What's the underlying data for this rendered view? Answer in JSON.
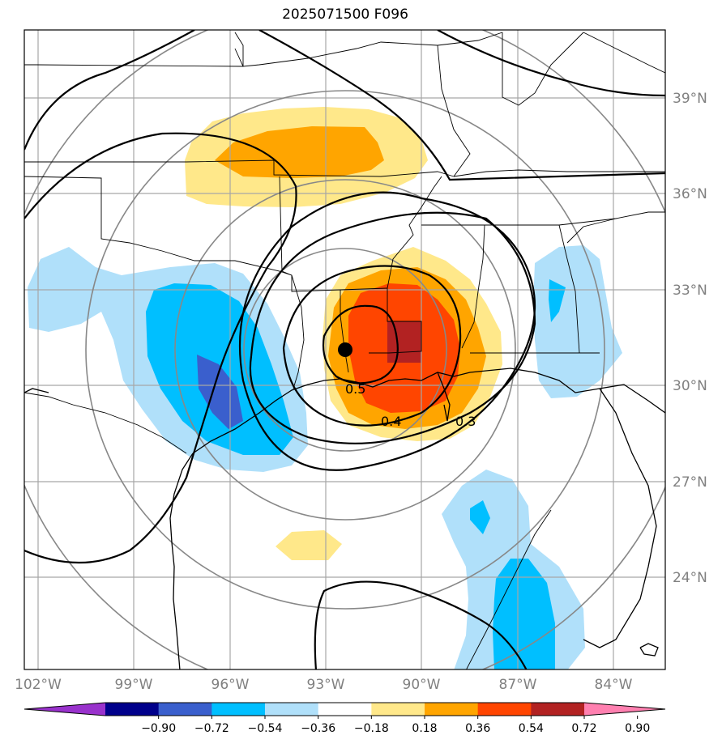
{
  "title": "2025071500 F096",
  "map": {
    "lat_labels": [
      "39°N",
      "36°N",
      "33°N",
      "30°N",
      "27°N",
      "24°N"
    ],
    "lon_labels": [
      "102°W",
      "99°W",
      "96°W",
      "93°W",
      "90°W",
      "87°W",
      "84°W"
    ],
    "contour_labels": [
      "0.5",
      "0.4",
      "0.3"
    ],
    "center_marker": "storm-center"
  },
  "colorbar": {
    "ticks": [
      "−0.90",
      "−0.72",
      "−0.54",
      "−0.36",
      "−0.18",
      "0.18",
      "0.36",
      "0.54",
      "0.72",
      "0.90"
    ],
    "colors": [
      "#9932cc",
      "#00008b",
      "#3a5fcd",
      "#00bfff",
      "#b0e0fa",
      "#ffffff",
      "#ffe88a",
      "#ffa500",
      "#ff4500",
      "#b22222",
      "#ff80b0"
    ]
  }
}
